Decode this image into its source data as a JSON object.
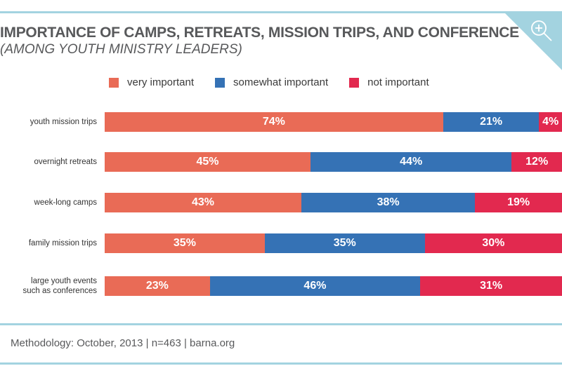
{
  "header": {
    "title": "IMPORTANCE OF CAMPS, RETREATS, MISSION TRIPS, AND CONFERENCE",
    "subtitle": "(AMONG YOUTH MINISTRY LEADERS)",
    "zoom_icon": "zoom-in-magnifier-icon"
  },
  "colors": {
    "very_important": "#e96b56",
    "somewhat_important": "#3572b5",
    "not_important": "#e2294f",
    "accent": "#a3d3e0"
  },
  "chart_data": {
    "type": "bar",
    "orientation": "horizontal",
    "stacked": true,
    "title": "IMPORTANCE OF CAMPS, RETREATS, MISSION TRIPS, AND CONFERENCE",
    "subtitle": "(AMONG YOUTH MINISTRY LEADERS)",
    "xlabel": "",
    "ylabel": "",
    "xlim": [
      0,
      100
    ],
    "grid": false,
    "legend_position": "top",
    "categories": [
      "youth mission trips",
      "overnight retreats",
      "week-long camps",
      "family mission trips",
      "large youth events such as conferences"
    ],
    "category_lines": [
      [
        "youth mission trips"
      ],
      [
        "overnight retreats"
      ],
      [
        "week-long camps"
      ],
      [
        "family mission trips"
      ],
      [
        "large youth events",
        "such as conferences"
      ]
    ],
    "series": [
      {
        "name": "very important",
        "color": "#e96b56",
        "values": [
          74,
          45,
          43,
          35,
          23
        ]
      },
      {
        "name": "somewhat important",
        "color": "#3572b5",
        "values": [
          21,
          44,
          38,
          35,
          46
        ]
      },
      {
        "name": "not important",
        "color": "#e2294f",
        "values": [
          4,
          12,
          19,
          30,
          31
        ]
      }
    ],
    "value_suffix": "%"
  },
  "footer": {
    "methodology": "Methodology: October, 2013 | n=463 | barna.org"
  }
}
